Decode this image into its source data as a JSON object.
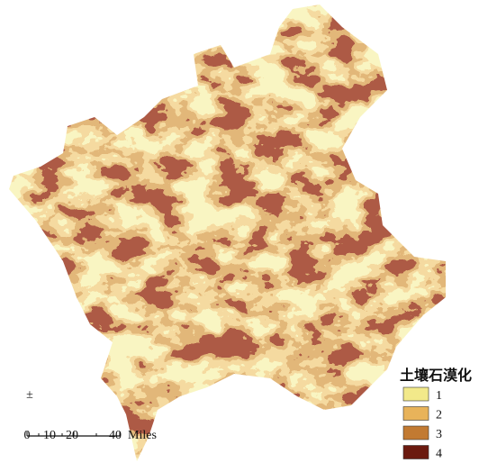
{
  "north_symbol": "±",
  "legend": {
    "title": "土壤石漠化",
    "items": [
      {
        "label": "1",
        "color": "#f2e98a"
      },
      {
        "label": "2",
        "color": "#e8b35a"
      },
      {
        "label": "3",
        "color": "#c27a32"
      },
      {
        "label": "4",
        "color": "#6b1a0f"
      }
    ]
  },
  "scale_bar": {
    "labels": [
      "0",
      "10",
      "20",
      "40"
    ],
    "unit": "Miles"
  }
}
